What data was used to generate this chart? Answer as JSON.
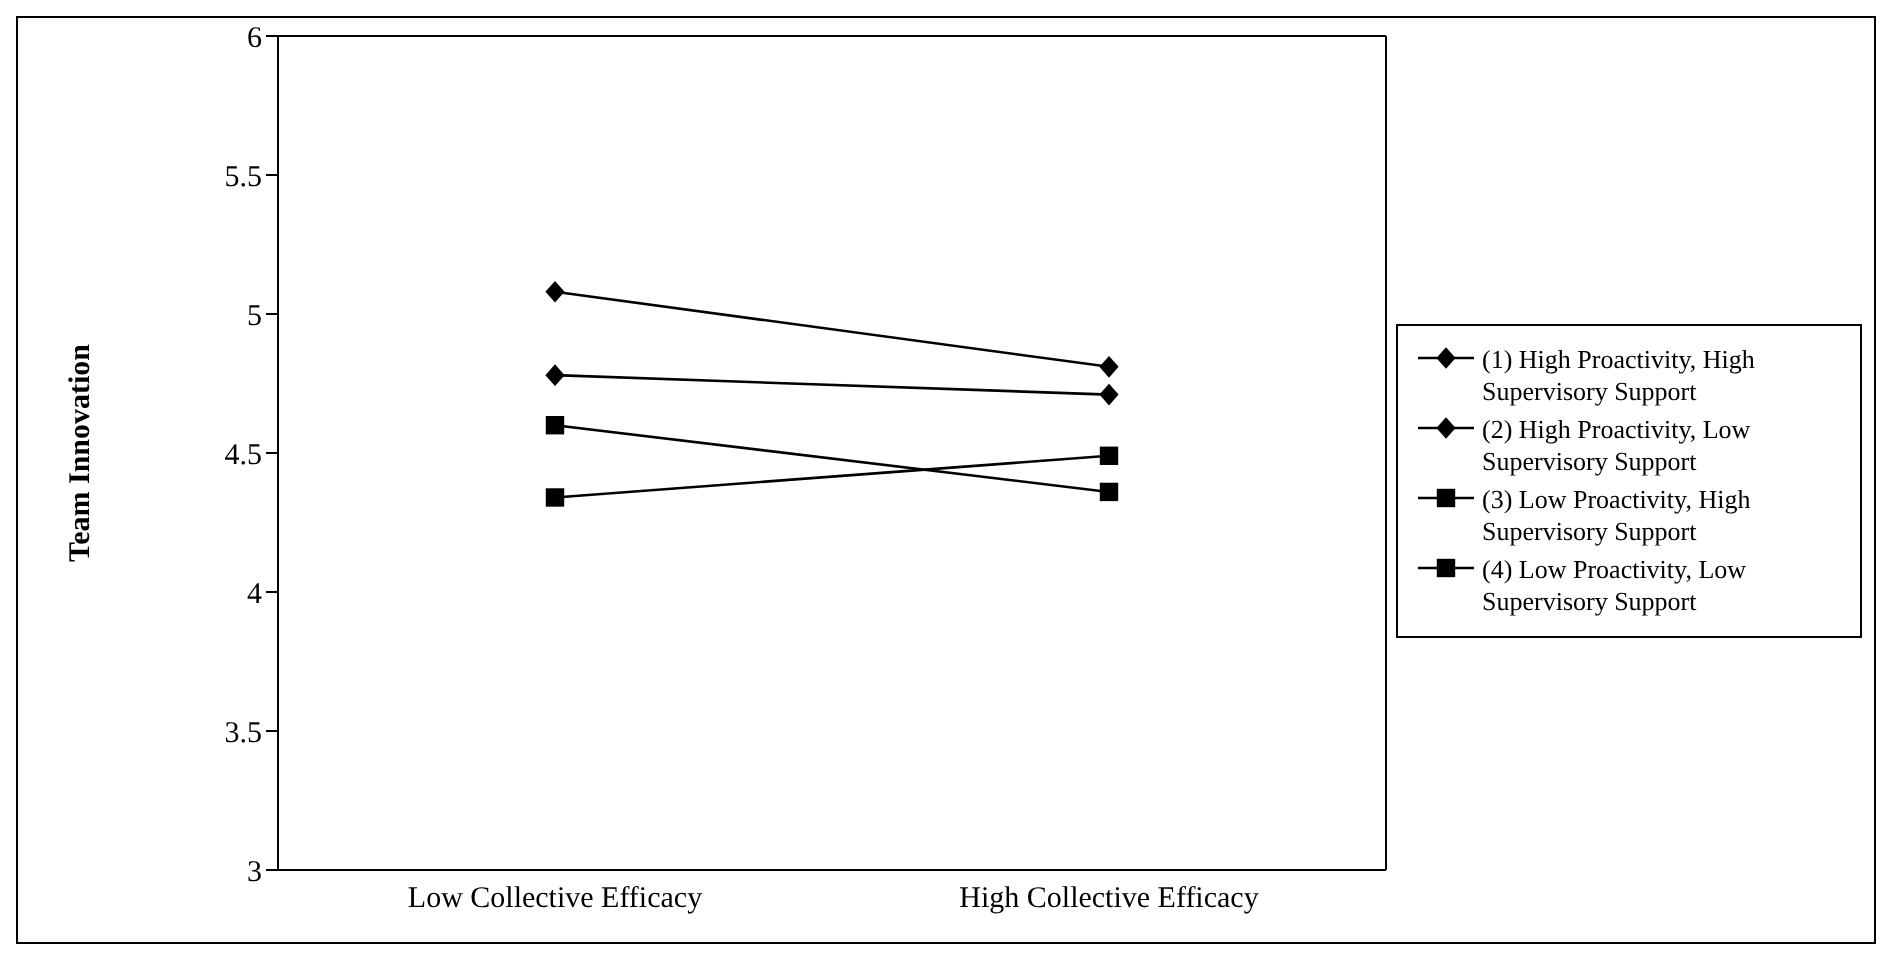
{
  "chart_data": {
    "type": "line",
    "ylabel": "Team Innovation",
    "categories": [
      "Low Collective Efficacy",
      "High Collective Efficacy"
    ],
    "series": [
      {
        "name": "(1) High Proactivity, High Supervisory Support",
        "color": "#000000",
        "marker": "diamond",
        "values": [
          5.08,
          4.81
        ]
      },
      {
        "name": "(2) High Proactivity, Low Supervisory Support",
        "color": "#000000",
        "marker": "diamond",
        "values": [
          4.78,
          4.71
        ]
      },
      {
        "name": "(3) Low Proactivity, High Supervisory Support",
        "color": "#000000",
        "marker": "square",
        "values": [
          4.6,
          4.36
        ]
      },
      {
        "name": "(4) Low Proactivity, Low Supervisory Support",
        "color": "#000000",
        "marker": "square",
        "values": [
          4.34,
          4.49
        ]
      }
    ],
    "ylim": [
      3,
      6
    ],
    "yticks": [
      3,
      3.5,
      4,
      4.5,
      5,
      5.5,
      6
    ],
    "grid": false,
    "legend": "right",
    "line_style": "solid"
  }
}
